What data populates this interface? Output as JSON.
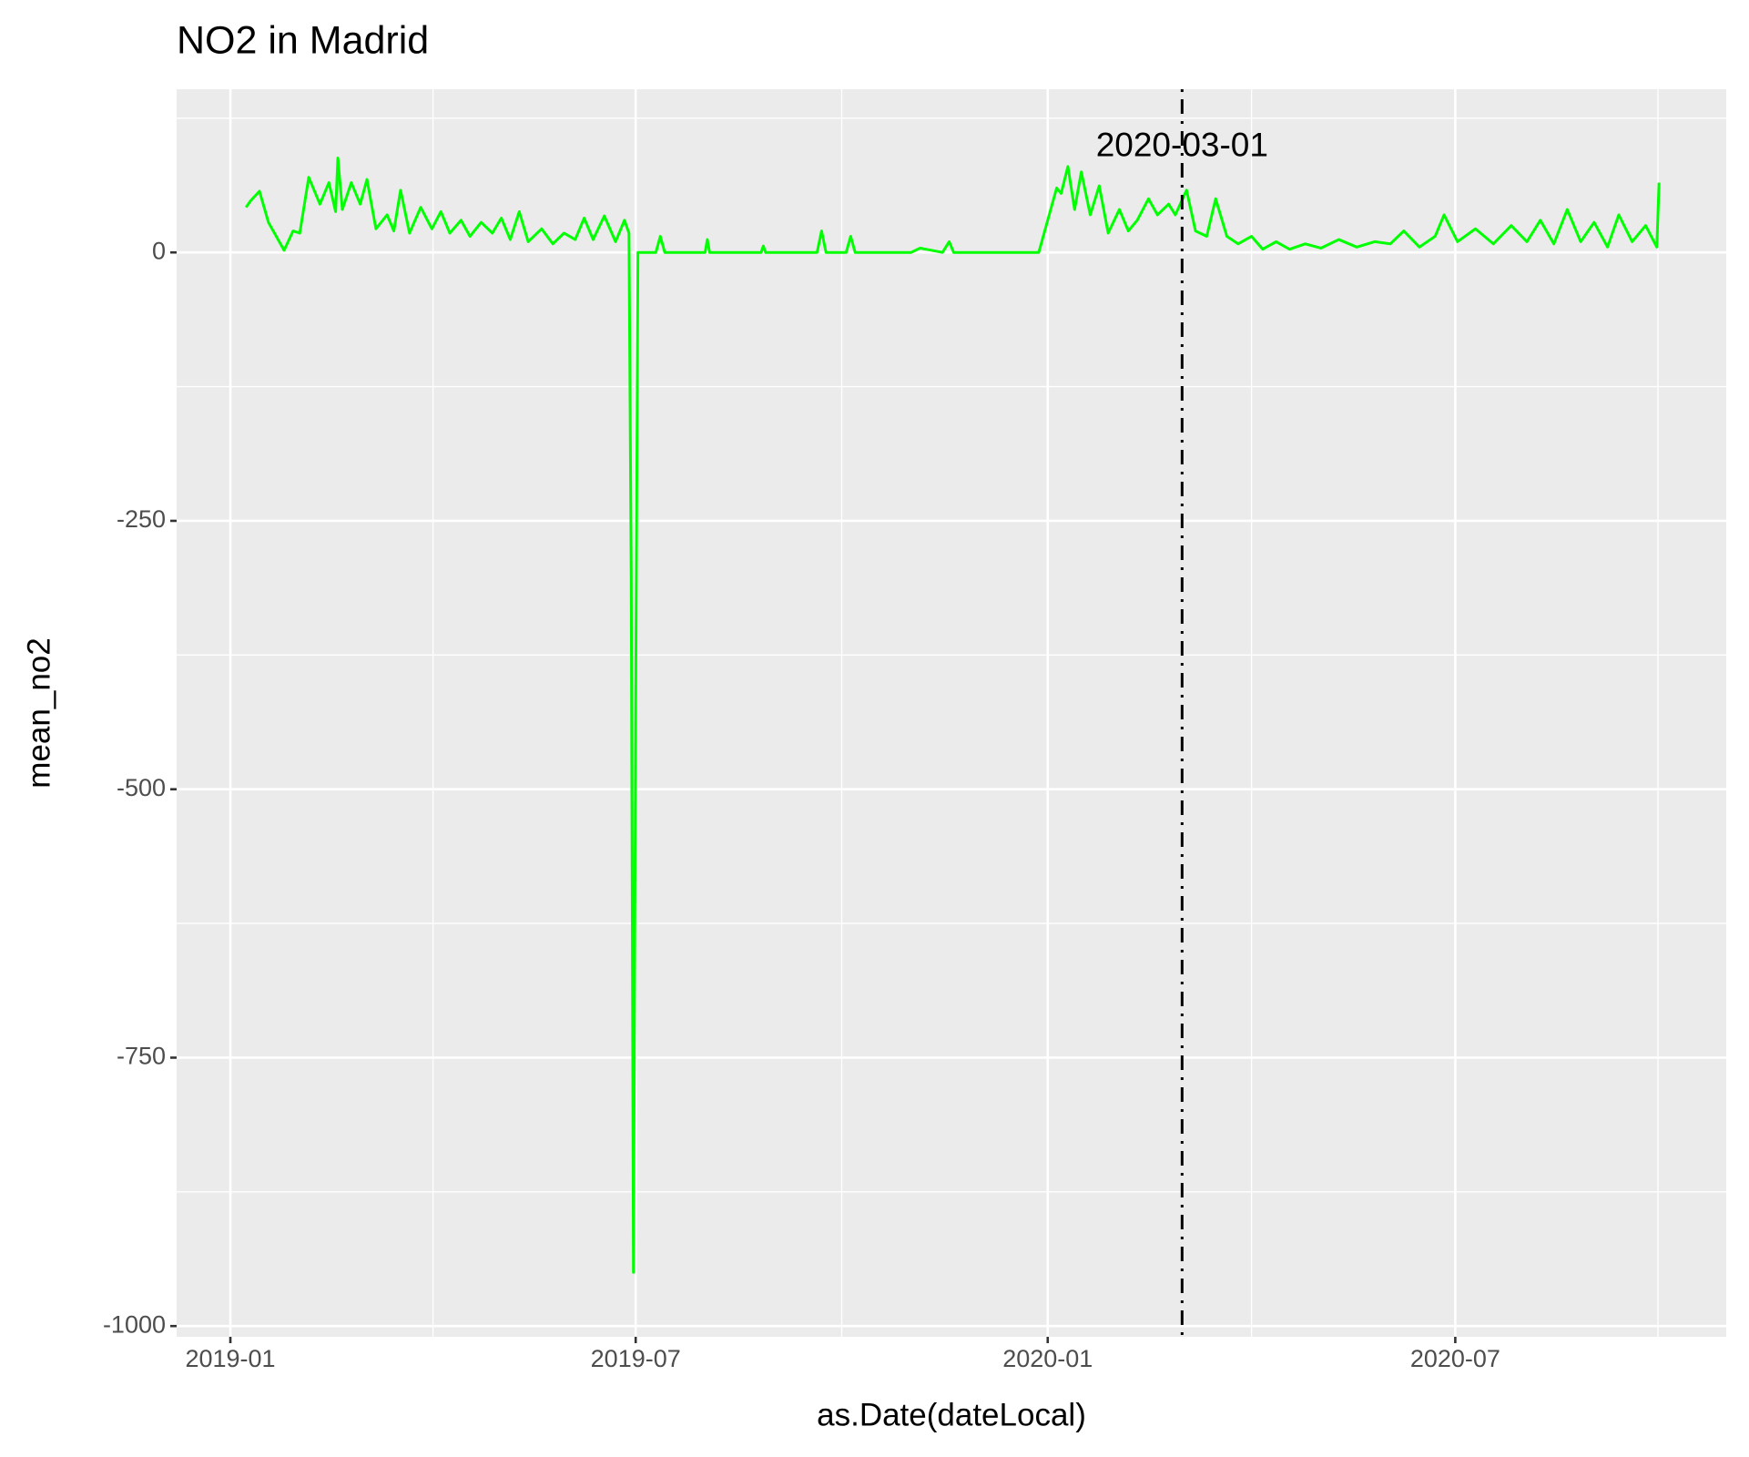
{
  "chart_data": {
    "type": "line",
    "title": "NO2 in Madrid",
    "x_label": "as.Date(dateLocal)",
    "y_label": "mean_no2",
    "color": "#00ff00",
    "grid": true,
    "xlim": [
      "2018-12-08",
      "2020-10-30"
    ],
    "xticks": [
      {
        "value": "2019-01-01",
        "label": "2019-01"
      },
      {
        "value": "2019-07-01",
        "label": "2019-07"
      },
      {
        "value": "2020-01-01",
        "label": "2020-01"
      },
      {
        "value": "2020-07-01",
        "label": "2020-07"
      }
    ],
    "ylim": [
      -1010,
      152
    ],
    "yticks": [
      0,
      -250,
      -500,
      -750,
      -1000
    ],
    "vline": {
      "x": "2020-03-01",
      "color": "#000000",
      "linetype": "dotdash"
    },
    "annotations": [
      {
        "text": "2020-03-01",
        "x": "2020-03-01",
        "y": 98
      }
    ],
    "x": [
      "2019-01-08",
      "2019-01-10",
      "2019-01-14",
      "2019-01-18",
      "2019-01-25",
      "2019-01-29",
      "2019-02-01",
      "2019-02-05",
      "2019-02-10",
      "2019-02-14",
      "2019-02-17",
      "2019-02-18",
      "2019-02-20",
      "2019-02-24",
      "2019-02-28",
      "2019-03-03",
      "2019-03-07",
      "2019-03-12",
      "2019-03-15",
      "2019-03-18",
      "2019-03-22",
      "2019-03-27",
      "2019-04-01",
      "2019-04-05",
      "2019-04-09",
      "2019-04-14",
      "2019-04-18",
      "2019-04-23",
      "2019-04-28",
      "2019-05-02",
      "2019-05-06",
      "2019-05-10",
      "2019-05-14",
      "2019-05-20",
      "2019-05-25",
      "2019-05-30",
      "2019-06-04",
      "2019-06-08",
      "2019-06-12",
      "2019-06-17",
      "2019-06-22",
      "2019-06-26",
      "2019-06-28",
      "2019-06-29",
      "2019-06-30",
      "2019-07-01",
      "2019-07-02",
      "2019-07-10",
      "2019-07-12",
      "2019-07-14",
      "2019-08-01",
      "2019-08-02",
      "2019-08-03",
      "2019-08-26",
      "2019-08-27",
      "2019-08-28",
      "2019-09-20",
      "2019-09-22",
      "2019-09-24",
      "2019-10-03",
      "2019-10-05",
      "2019-10-07",
      "2019-11-01",
      "2019-11-05",
      "2019-11-15",
      "2019-11-18",
      "2019-11-20",
      "2019-12-28",
      "2020-01-03",
      "2020-01-05",
      "2020-01-07",
      "2020-01-10",
      "2020-01-13",
      "2020-01-16",
      "2020-01-20",
      "2020-01-24",
      "2020-01-28",
      "2020-02-02",
      "2020-02-06",
      "2020-02-10",
      "2020-02-15",
      "2020-02-19",
      "2020-02-24",
      "2020-02-27",
      "2020-03-03",
      "2020-03-07",
      "2020-03-12",
      "2020-03-16",
      "2020-03-21",
      "2020-03-26",
      "2020-04-01",
      "2020-04-06",
      "2020-04-12",
      "2020-04-18",
      "2020-04-25",
      "2020-05-02",
      "2020-05-10",
      "2020-05-18",
      "2020-05-26",
      "2020-06-02",
      "2020-06-08",
      "2020-06-15",
      "2020-06-22",
      "2020-06-26",
      "2020-07-02",
      "2020-07-10",
      "2020-07-18",
      "2020-07-26",
      "2020-08-02",
      "2020-08-08",
      "2020-08-14",
      "2020-08-20",
      "2020-08-26",
      "2020-09-01",
      "2020-09-07",
      "2020-09-12",
      "2020-09-18",
      "2020-09-24",
      "2020-09-29",
      "2020-09-30"
    ],
    "values": [
      42,
      48,
      57,
      28,
      2,
      20,
      18,
      70,
      45,
      65,
      38,
      88,
      40,
      65,
      45,
      68,
      22,
      35,
      20,
      58,
      18,
      42,
      22,
      38,
      18,
      30,
      15,
      28,
      18,
      32,
      12,
      38,
      10,
      22,
      8,
      18,
      12,
      32,
      12,
      34,
      10,
      30,
      18,
      -300,
      -950,
      -420,
      0,
      0,
      15,
      0,
      0,
      12,
      0,
      0,
      6,
      0,
      0,
      20,
      0,
      0,
      15,
      0,
      0,
      4,
      0,
      10,
      0,
      0,
      45,
      60,
      55,
      80,
      40,
      75,
      35,
      62,
      18,
      40,
      20,
      30,
      50,
      35,
      45,
      35,
      58,
      20,
      15,
      50,
      15,
      8,
      15,
      3,
      10,
      3,
      8,
      4,
      12,
      5,
      10,
      8,
      20,
      5,
      15,
      35,
      10,
      22,
      8,
      25,
      10,
      30,
      8,
      40,
      10,
      28,
      5,
      35,
      10,
      25,
      5,
      65
    ]
  }
}
